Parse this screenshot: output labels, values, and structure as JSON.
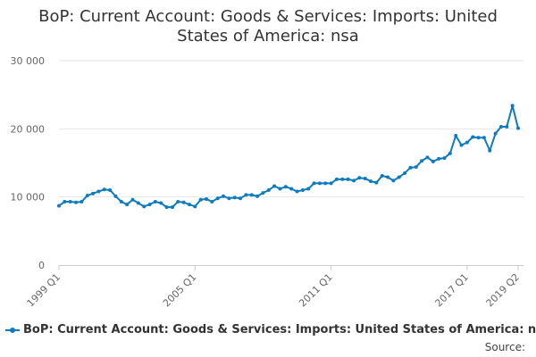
{
  "chart_data": {
    "type": "line",
    "title": "BoP: Current Account: Goods & Services: Imports: United States of America: nsa",
    "xlabel": "",
    "ylabel": "",
    "ylim": [
      0,
      30000
    ],
    "yticks": [
      {
        "value": 0,
        "label": "0"
      },
      {
        "value": 10000,
        "label": "10 000"
      },
      {
        "value": 20000,
        "label": "20 000"
      },
      {
        "value": 30000,
        "label": "30 000"
      }
    ],
    "xticks": [
      {
        "index": 0,
        "label": "1999 Q1"
      },
      {
        "index": 24,
        "label": "2005 Q1"
      },
      {
        "index": 48,
        "label": "2011 Q1"
      },
      {
        "index": 72,
        "label": "2017 Q1"
      },
      {
        "index": 81,
        "label": "2019 Q2"
      }
    ],
    "color": "#0e7bbf",
    "series": [
      {
        "name": "BoP: Current Account: Goods & Services: Imports: United States of America: nsa",
        "x": [
          "1999 Q1",
          "1999 Q2",
          "1999 Q3",
          "1999 Q4",
          "2000 Q1",
          "2000 Q2",
          "2000 Q3",
          "2000 Q4",
          "2001 Q1",
          "2001 Q2",
          "2001 Q3",
          "2001 Q4",
          "2002 Q1",
          "2002 Q2",
          "2002 Q3",
          "2002 Q4",
          "2003 Q1",
          "2003 Q2",
          "2003 Q3",
          "2003 Q4",
          "2004 Q1",
          "2004 Q2",
          "2004 Q3",
          "2004 Q4",
          "2005 Q1",
          "2005 Q2",
          "2005 Q3",
          "2005 Q4",
          "2006 Q1",
          "2006 Q2",
          "2006 Q3",
          "2006 Q4",
          "2007 Q1",
          "2007 Q2",
          "2007 Q3",
          "2007 Q4",
          "2008 Q1",
          "2008 Q2",
          "2008 Q3",
          "2008 Q4",
          "2009 Q1",
          "2009 Q2",
          "2009 Q3",
          "2009 Q4",
          "2010 Q1",
          "2010 Q2",
          "2010 Q3",
          "2010 Q4",
          "2011 Q1",
          "2011 Q2",
          "2011 Q3",
          "2011 Q4",
          "2012 Q1",
          "2012 Q2",
          "2012 Q3",
          "2012 Q4",
          "2013 Q1",
          "2013 Q2",
          "2013 Q3",
          "2013 Q4",
          "2014 Q1",
          "2014 Q2",
          "2014 Q3",
          "2014 Q4",
          "2015 Q1",
          "2015 Q2",
          "2015 Q3",
          "2015 Q4",
          "2016 Q1",
          "2016 Q2",
          "2016 Q3",
          "2016 Q4",
          "2017 Q1",
          "2017 Q2",
          "2017 Q3",
          "2017 Q4",
          "2018 Q1",
          "2018 Q2",
          "2018 Q3",
          "2018 Q4",
          "2019 Q1",
          "2019 Q2"
        ],
        "values": [
          8700,
          9300,
          9300,
          9200,
          9300,
          10200,
          10500,
          10800,
          11100,
          11000,
          10100,
          9300,
          8900,
          9600,
          9100,
          8600,
          8900,
          9300,
          9100,
          8500,
          8500,
          9300,
          9200,
          8900,
          8600,
          9600,
          9700,
          9300,
          9800,
          10100,
          9800,
          9900,
          9800,
          10300,
          10300,
          10100,
          10600,
          11000,
          11600,
          11200,
          11500,
          11200,
          10800,
          11000,
          11200,
          12000,
          12000,
          12000,
          12000,
          12600,
          12600,
          12600,
          12400,
          12800,
          12700,
          12300,
          12100,
          13100,
          12900,
          12400,
          12900,
          13500,
          14300,
          14400,
          15300,
          15800,
          15200,
          15600,
          15700,
          16400,
          19000,
          17600,
          18000,
          18800,
          18700,
          18700,
          16800,
          19300,
          20300,
          20300,
          23400,
          20100
        ]
      }
    ]
  },
  "legend": {
    "label": "BoP: Current Account: Goods & Services: Imports: United States of America: nsa"
  },
  "footer": {
    "source": "Source:"
  }
}
